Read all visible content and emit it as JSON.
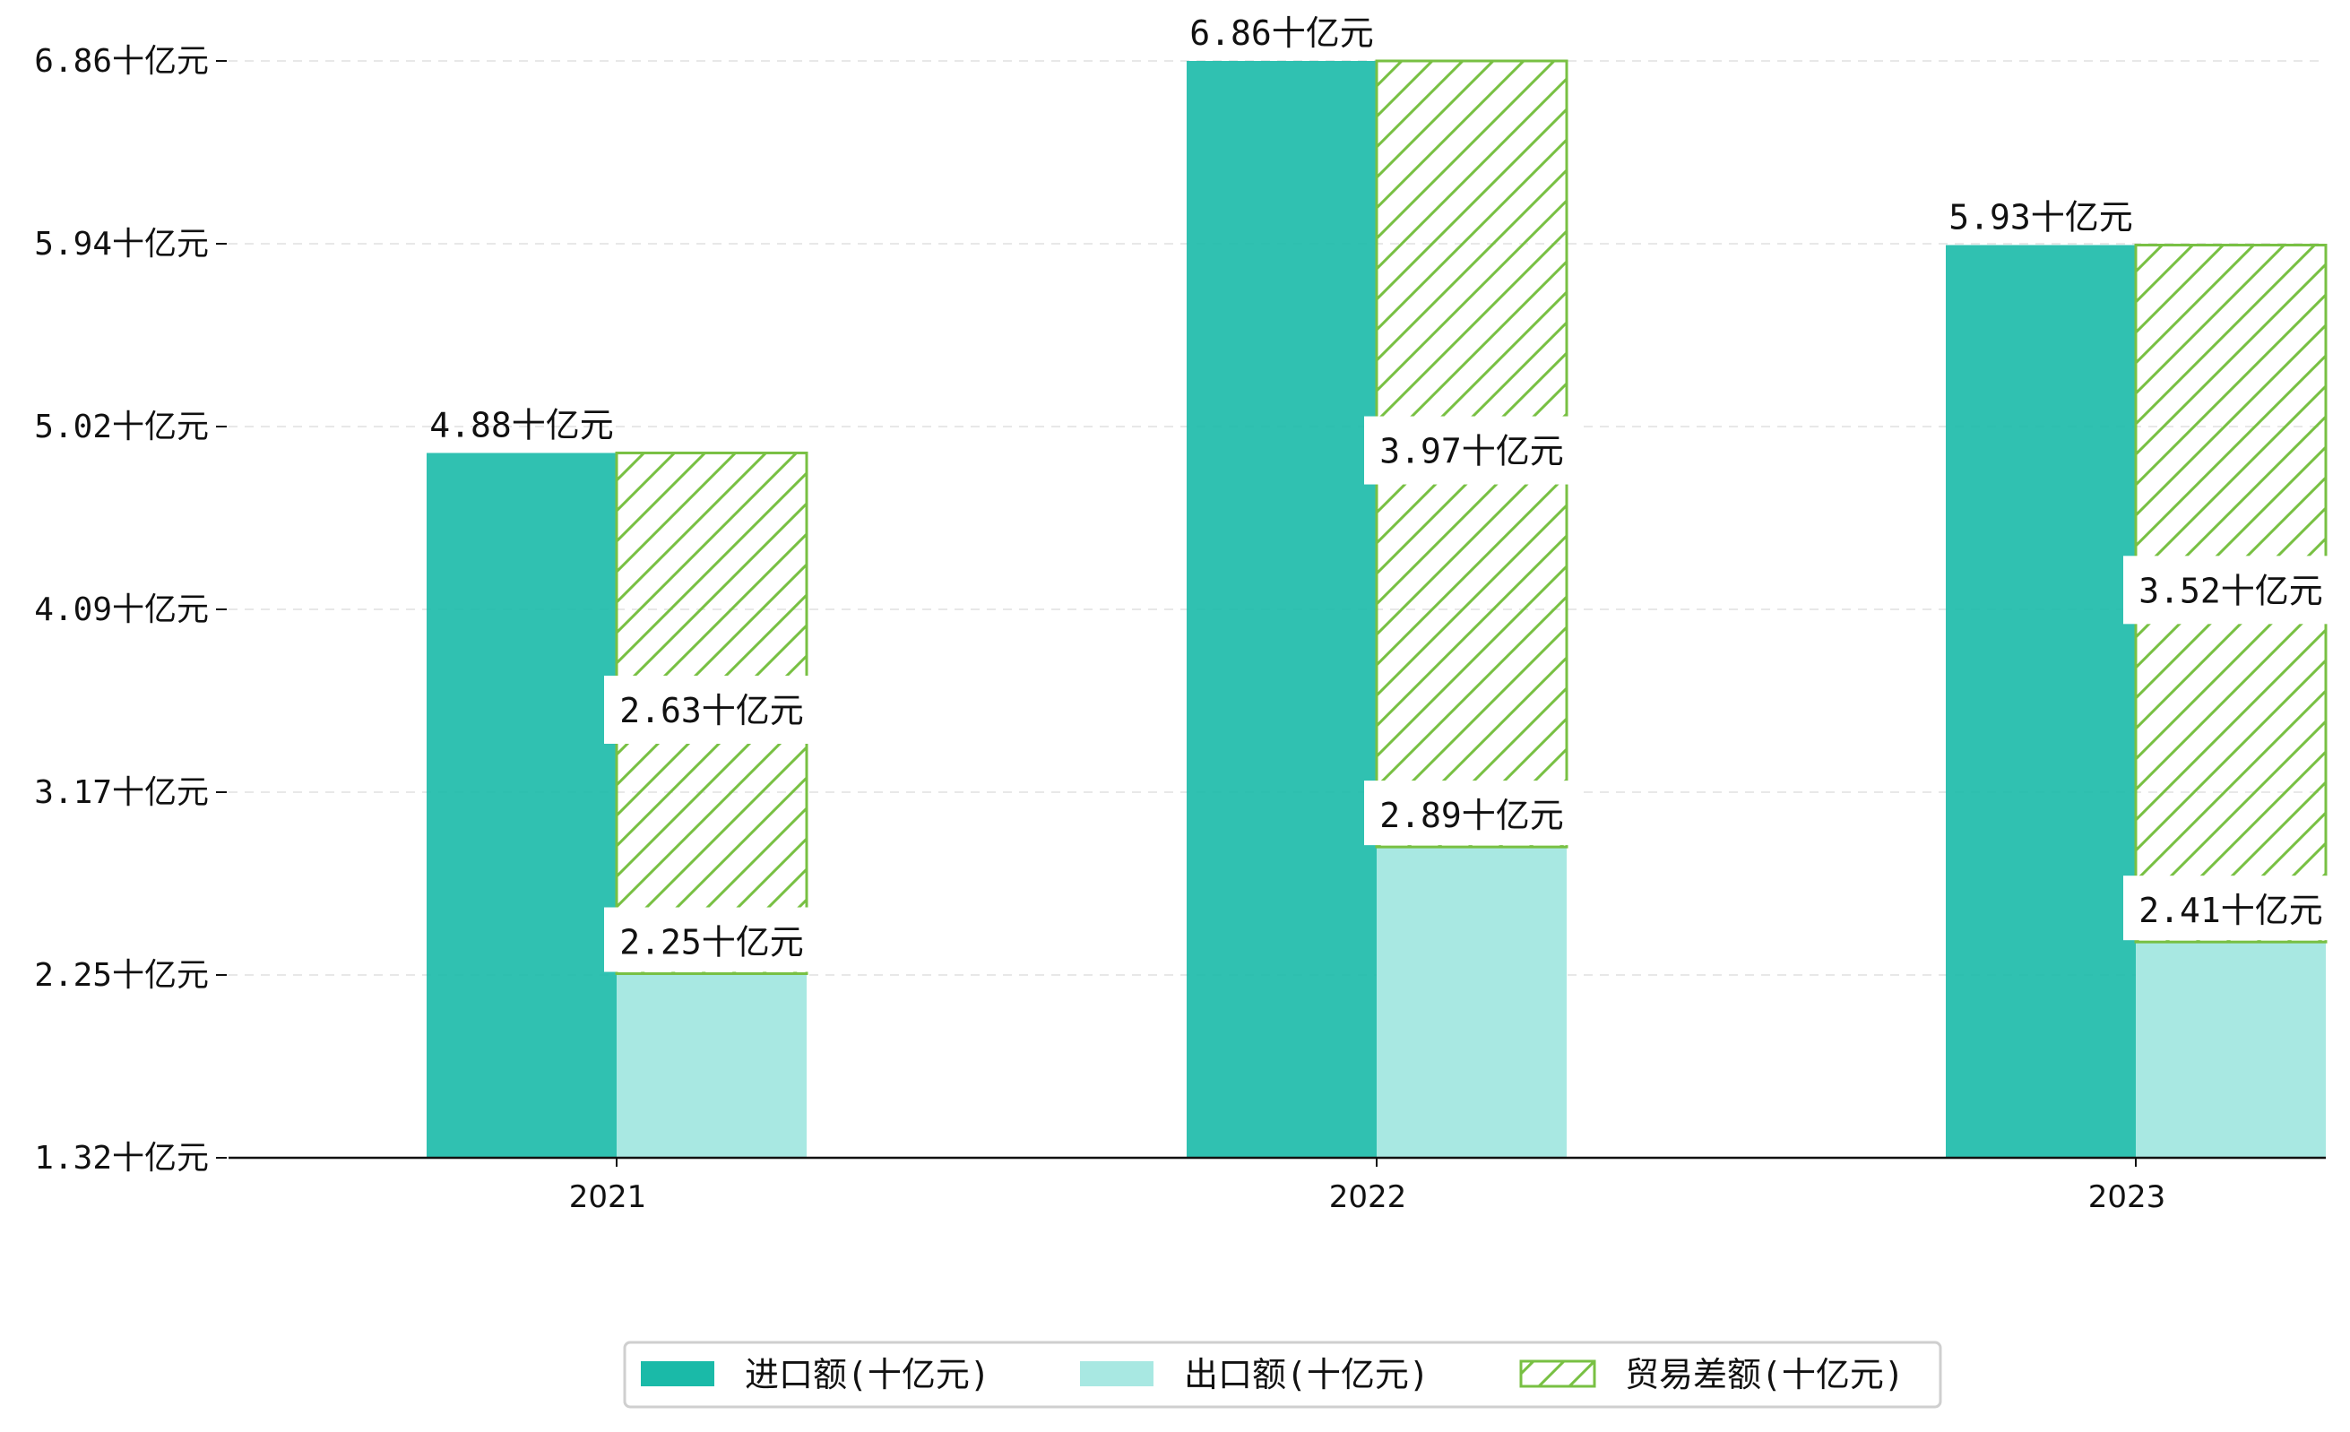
{
  "chart_data": {
    "type": "bar",
    "categories": [
      "2021",
      "2022",
      "2023"
    ],
    "series": [
      {
        "name": "进口额(十亿元)",
        "values": [
          4.88,
          6.86,
          5.93
        ],
        "color": "#1ABAA8"
      },
      {
        "name": "出口额(十亿元)",
        "values": [
          2.25,
          2.89,
          2.41
        ],
        "color": "#A8E8E2"
      },
      {
        "name": "贸易差额(十亿元)",
        "values": [
          2.63,
          3.97,
          3.52
        ],
        "color": "#78C043",
        "hatched": true
      }
    ],
    "stacked_pairs": "出口额与贸易差额堆叠",
    "yticks": [
      "1.32十亿元",
      "2.25十亿元",
      "3.17十亿元",
      "4.09十亿元",
      "5.02十亿元",
      "5.94十亿元",
      "6.86十亿元"
    ],
    "ylim": [
      1.32,
      6.86
    ],
    "unit_suffix": "十亿元",
    "grid": "horizontal dashed",
    "legend_position": "bottom-center",
    "xlabel": "",
    "ylabel": "",
    "title": ""
  }
}
